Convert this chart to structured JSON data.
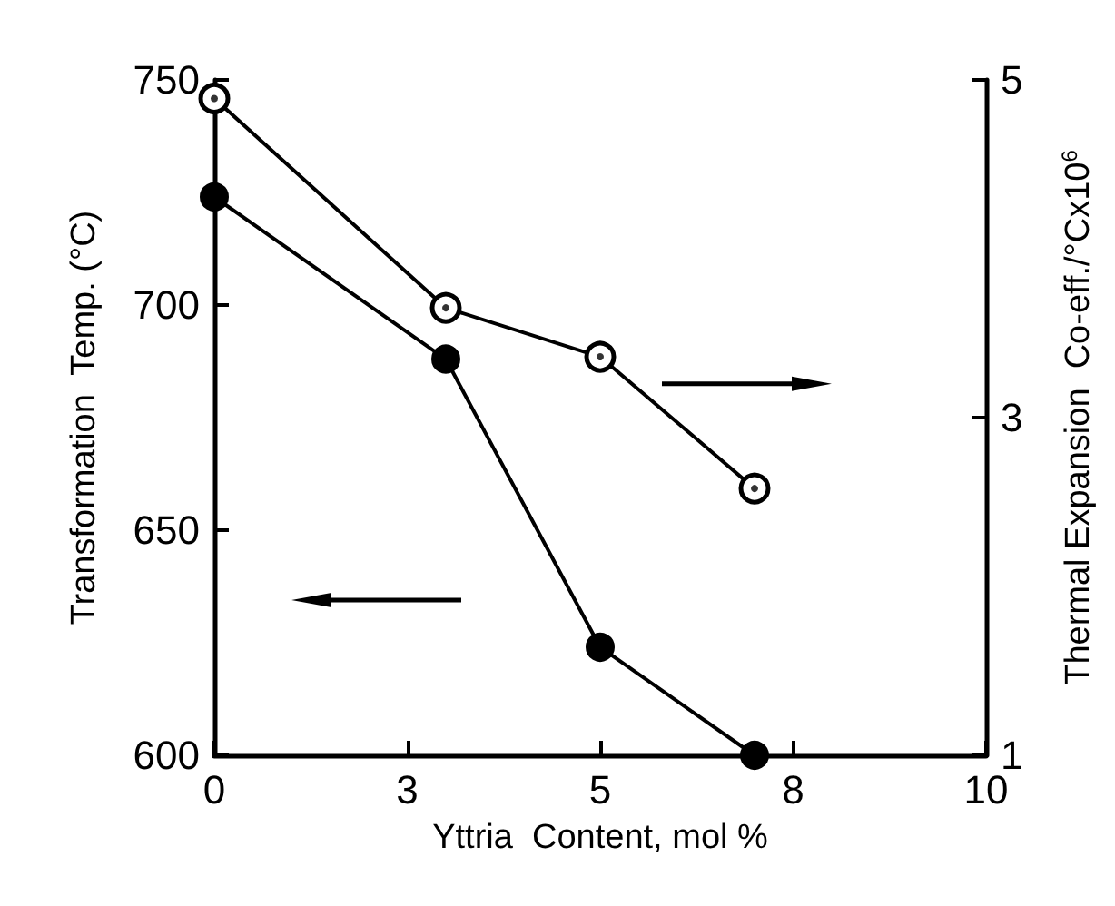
{
  "chart_data": {
    "type": "line",
    "xlabel": "Yttria  Content, mol %",
    "ylabel": "Transformation  Temp. (°C)",
    "y2label": "Thermal Expansion  Co-eff./°Cx10$^{6}$",
    "x": [
      0,
      3,
      5,
      7
    ],
    "series": [
      {
        "color": "#000000",
        "values": [
          724,
          688,
          624,
          600
        ],
        "marker": "circle"
      },
      {
        "color": "#000000",
        "values": [
          4.89,
          3.65,
          3.36,
          2.58
        ],
        "axis": "y2",
        "marker": "circle"
      }
    ],
    "xlim": [
      0,
      10
    ],
    "xticks": [
      0,
      {
        "value": 2.5,
        "label": "3"
      },
      5,
      {
        "value": 7.5,
        "label": "8"
      },
      10
    ],
    "ylim": [
      600,
      750
    ],
    "yticks": [
      600,
      650,
      700,
      750
    ],
    "y2lim": [
      1,
      5
    ],
    "y2ticks": [
      1,
      3,
      5
    ],
    "grid": false,
    "line_style": "solid"
  }
}
